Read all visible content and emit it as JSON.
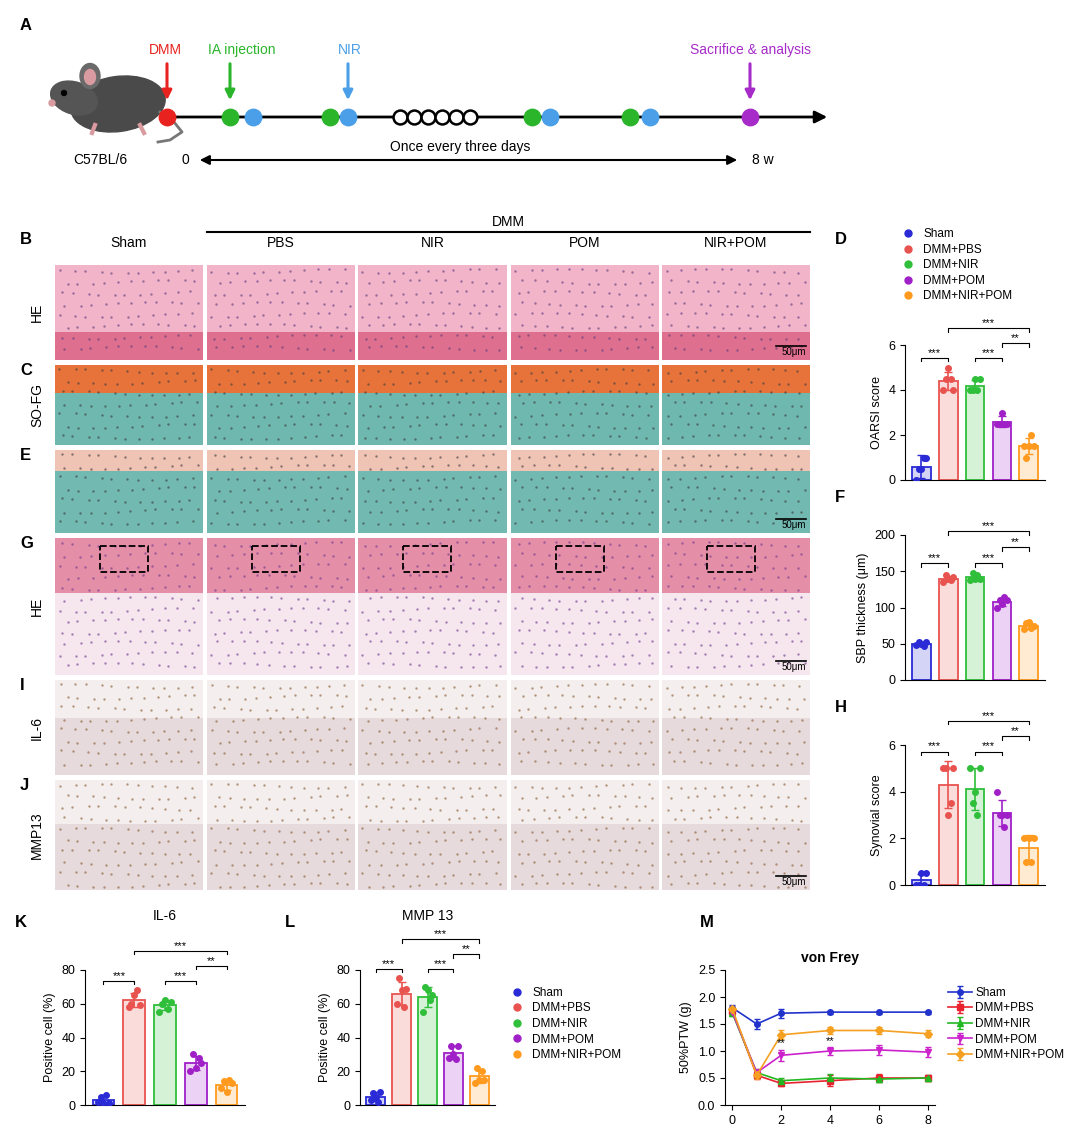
{
  "timeline": {
    "panel": "A",
    "strain": "C57BL/6",
    "start": "0",
    "end": "8 w",
    "interval": "Once every three days",
    "events": [
      {
        "label": "DMM",
        "color": "#e8231f"
      },
      {
        "label": "IA injection",
        "color": "#2bb52b"
      },
      {
        "label": "NIR",
        "color": "#4a9fe8"
      },
      {
        "label": "Sacrifice & analysis",
        "color": "#a62bc8"
      }
    ]
  },
  "histology": {
    "group": "DMM",
    "columns": [
      "Sham",
      "PBS",
      "NIR",
      "POM",
      "NIR+POM"
    ],
    "scale_bar": "50μm",
    "rows": [
      {
        "panel": "B",
        "stain": "HE",
        "scale_bar": true
      },
      {
        "panel": "C",
        "stain": "SO-FG",
        "scale_bar": false
      },
      {
        "panel": "E",
        "stain": null,
        "scale_bar": true
      },
      {
        "panel": "G",
        "stain": "HE",
        "scale_bar": true
      },
      {
        "panel": "I",
        "stain": "IL-6",
        "scale_bar": false
      },
      {
        "panel": "J",
        "stain": "MMP13",
        "scale_bar": true
      }
    ]
  },
  "chart_data": [
    {
      "panel": "D",
      "type": "bar",
      "categories": [
        "Sham",
        "DMM+PBS",
        "DMM+NIR",
        "DMM+POM",
        "DMM+NIR+POM"
      ],
      "colors": [
        "#2a2ad6",
        "#e8534f",
        "#2fbf3a",
        "#a020c8",
        "#ff9a1e"
      ],
      "values": [
        0.6,
        4.4,
        4.2,
        2.6,
        1.5
      ],
      "errors": [
        0.5,
        0.4,
        0.25,
        0.25,
        0.35
      ],
      "points": [
        [
          0,
          0.5,
          0.5,
          1,
          1
        ],
        [
          4,
          4.5,
          5,
          4.5,
          4
        ],
        [
          4,
          4,
          4.5,
          4,
          4.5
        ],
        [
          2.5,
          2.5,
          3,
          2.5,
          2.5
        ],
        [
          1.5,
          1,
          1.5,
          2,
          1.5
        ]
      ],
      "ylabel": "OARSI score",
      "ylim": [
        0,
        6
      ],
      "yticks": [
        0,
        2,
        4,
        6
      ],
      "tick_labels": "y",
      "legend": "top",
      "significance": [
        {
          "pair": [
            0,
            1
          ],
          "label": "***"
        },
        {
          "pair": [
            2,
            3
          ],
          "label": "***"
        },
        {
          "pair": [
            1,
            4
          ],
          "label": "***"
        },
        {
          "pair": [
            3,
            4
          ],
          "label": "**"
        }
      ]
    },
    {
      "panel": "F",
      "type": "bar",
      "categories": [
        "Sham",
        "DMM+PBS",
        "DMM+NIR",
        "DMM+POM",
        "DMM+NIR+POM"
      ],
      "colors": [
        "#2a2ad6",
        "#e8534f",
        "#2fbf3a",
        "#a020c8",
        "#ff9a1e"
      ],
      "values": [
        50,
        140,
        142,
        108,
        75
      ],
      "errors": [
        2.5,
        3.8,
        3.7,
        5.7,
        4
      ],
      "points": [
        [
          48,
          52,
          50,
          47,
          53
        ],
        [
          135,
          145,
          140,
          138,
          142
        ],
        [
          138,
          147,
          140,
          145,
          140
        ],
        [
          100,
          110,
          105,
          115,
          110
        ],
        [
          70,
          78,
          80,
          72,
          75
        ]
      ],
      "ylabel": "SBP thickness (μm)",
      "ylim": [
        0,
        200
      ],
      "yticks": [
        0,
        50,
        100,
        150,
        200
      ],
      "tick_labels": "y",
      "significance": [
        {
          "pair": [
            0,
            1
          ],
          "label": "***"
        },
        {
          "pair": [
            2,
            3
          ],
          "label": "***"
        },
        {
          "pair": [
            1,
            4
          ],
          "label": "***"
        },
        {
          "pair": [
            3,
            4
          ],
          "label": "**"
        }
      ]
    },
    {
      "panel": "H",
      "type": "bar",
      "categories": [
        "Sham",
        "DMM+PBS",
        "DMM+NIR",
        "DMM+POM",
        "DMM+NIR+POM"
      ],
      "colors": [
        "#2a2ad6",
        "#e8534f",
        "#2fbf3a",
        "#a020c8",
        "#ff9a1e"
      ],
      "values": [
        0.2,
        4.3,
        4.1,
        3.1,
        1.6
      ],
      "errors": [
        0.27,
        1.0,
        0.9,
        0.55,
        0.55
      ],
      "points": [
        [
          0,
          0,
          0.5,
          0,
          0.5
        ],
        [
          5,
          5,
          3,
          3.5,
          5
        ],
        [
          5,
          3.5,
          4,
          3,
          5
        ],
        [
          4,
          3,
          3,
          2.5,
          3
        ],
        [
          2,
          1,
          2,
          1,
          2
        ]
      ],
      "ylabel": "Synovial score",
      "ylim": [
        0,
        6
      ],
      "yticks": [
        0,
        2,
        4,
        6
      ],
      "tick_labels": "y",
      "significance": [
        {
          "pair": [
            0,
            1
          ],
          "label": "***"
        },
        {
          "pair": [
            2,
            3
          ],
          "label": "***"
        },
        {
          "pair": [
            1,
            4
          ],
          "label": "***"
        },
        {
          "pair": [
            3,
            4
          ],
          "label": "**"
        }
      ]
    },
    {
      "panel": "K",
      "type": "bar",
      "title": "IL-6",
      "categories": [
        "Sham",
        "DMM+PBS",
        "DMM+NIR",
        "DMM+POM",
        "DMM+NIR+POM"
      ],
      "colors": [
        "#2a2ad6",
        "#e8534f",
        "#2fbf3a",
        "#a020c8",
        "#ff9a1e"
      ],
      "values": [
        3,
        62,
        59,
        25,
        12
      ],
      "errors": [
        2.3,
        4.2,
        2.9,
        4.1,
        2.9
      ],
      "points": [
        [
          2,
          5,
          1,
          6,
          1
        ],
        [
          58,
          60,
          65,
          68,
          59
        ],
        [
          55,
          60,
          62,
          57,
          61
        ],
        [
          20,
          30,
          22,
          28,
          25
        ],
        [
          10,
          14,
          8,
          15,
          13
        ]
      ],
      "ylabel": "Positive cell (%)",
      "ylim": [
        0,
        80
      ],
      "yticks": [
        0,
        20,
        40,
        60,
        80
      ],
      "tick_labels": "y",
      "significance": [
        {
          "pair": [
            0,
            1
          ],
          "label": "***"
        },
        {
          "pair": [
            2,
            3
          ],
          "label": "***"
        },
        {
          "pair": [
            1,
            4
          ],
          "label": "***"
        },
        {
          "pair": [
            3,
            4
          ],
          "label": "**"
        }
      ]
    },
    {
      "panel": "L",
      "type": "bar",
      "title": "MMP 13",
      "categories": [
        "Sham",
        "DMM+PBS",
        "DMM+NIR",
        "DMM+POM",
        "DMM+NIR+POM"
      ],
      "colors": [
        "#2a2ad6",
        "#e8534f",
        "#2fbf3a",
        "#a020c8",
        "#ff9a1e"
      ],
      "values": [
        5,
        66,
        64,
        31,
        17
      ],
      "errors": [
        2.5,
        7,
        6,
        3.7,
        3.8
      ],
      "points": [
        [
          3,
          7,
          5,
          2,
          8
        ],
        [
          60,
          75,
          68,
          58,
          69
        ],
        [
          55,
          70,
          68,
          62,
          65
        ],
        [
          28,
          35,
          30,
          27,
          35
        ],
        [
          13,
          22,
          15,
          20,
          15
        ]
      ],
      "ylabel": "Positive cell (%)",
      "ylim": [
        0,
        80
      ],
      "yticks": [
        0,
        20,
        40,
        60,
        80
      ],
      "tick_labels": "y",
      "legend": "right",
      "significance": [
        {
          "pair": [
            0,
            1
          ],
          "label": "***"
        },
        {
          "pair": [
            2,
            3
          ],
          "label": "***"
        },
        {
          "pair": [
            1,
            4
          ],
          "label": "***"
        },
        {
          "pair": [
            3,
            4
          ],
          "label": "**"
        }
      ]
    },
    {
      "panel": "M",
      "type": "line",
      "title": "von Frey",
      "ylabel": "50%PTW (g)",
      "x": [
        0,
        1,
        2,
        4,
        6,
        8
      ],
      "xlim": [
        -0.3,
        8.3
      ],
      "xticks": [
        0,
        2,
        4,
        6,
        8
      ],
      "ylim": [
        0,
        2.5
      ],
      "yticks": [
        {
          "value": 0,
          "label": "0.0"
        },
        {
          "value": 0.5,
          "label": "0.5"
        },
        {
          "value": 1,
          "label": "1.0"
        },
        {
          "value": 1.5,
          "label": "1.5"
        },
        {
          "value": 2,
          "label": "2.0"
        },
        {
          "value": 2.5,
          "label": "2.5"
        }
      ],
      "legend": "right",
      "series": [
        {
          "name": "Sham",
          "color": "#2233cc",
          "marker": "circle",
          "values": [
            1.8,
            1.5,
            1.7,
            1.72,
            1.72,
            1.72
          ],
          "errors": [
            0.05,
            0.1,
            0.08,
            0.03,
            0.03,
            0.03
          ]
        },
        {
          "name": "DMM+PBS",
          "color": "#e8232f",
          "marker": "square",
          "values": [
            1.75,
            0.55,
            0.4,
            0.45,
            0.5,
            0.5
          ],
          "errors": [
            0.05,
            0.06,
            0.05,
            0.1,
            0.08,
            0.05
          ]
        },
        {
          "name": "DMM+NIR",
          "color": "#22b822",
          "marker": "triangle_up",
          "values": [
            1.7,
            0.6,
            0.45,
            0.5,
            0.48,
            0.5
          ],
          "errors": [
            0.05,
            0.06,
            0.05,
            0.08,
            0.06,
            0.05
          ]
        },
        {
          "name": "DMM+POM",
          "color": "#cc22cc",
          "marker": "triangle_down",
          "values": [
            1.72,
            0.6,
            0.92,
            1.0,
            1.02,
            0.98
          ],
          "errors": [
            0.05,
            0.06,
            0.1,
            0.08,
            0.1,
            0.1
          ]
        },
        {
          "name": "DMM+NIR+POM",
          "color": "#f5a020",
          "marker": "diamond",
          "values": [
            1.78,
            0.55,
            1.3,
            1.38,
            1.38,
            1.32
          ],
          "errors": [
            0.05,
            0.06,
            0.08,
            0.06,
            0.06,
            0.06
          ]
        }
      ],
      "annotations": [
        {
          "x": 2,
          "y": 1.05,
          "text": "**"
        },
        {
          "x": 4,
          "y": 1.1,
          "text": "**"
        }
      ]
    }
  ]
}
